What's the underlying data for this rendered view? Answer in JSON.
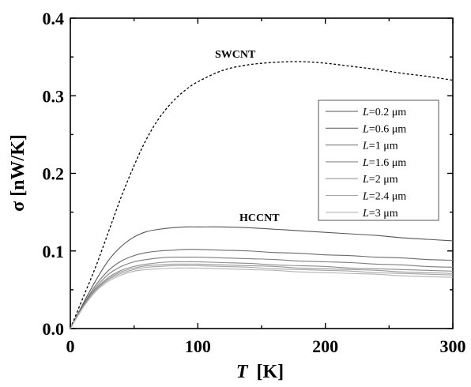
{
  "chart_data": {
    "type": "line",
    "xlabel": {
      "var": "T",
      "unit": "[K]"
    },
    "ylabel": "σ [nW/K]",
    "xlim": [
      0,
      300
    ],
    "ylim": [
      0.0,
      0.4
    ],
    "xticks": [
      "0",
      "100",
      "200",
      "300"
    ],
    "yticks": [
      "0.0",
      "0.1",
      "0.2",
      "0.3",
      "0.4"
    ],
    "grid": false,
    "legend_position": "right",
    "annotations": [
      "SWCNT",
      "HCCNT"
    ],
    "series": [
      {
        "label": "SWCNT",
        "style": "dashed",
        "color": "#000000",
        "x": [
          0,
          10,
          20,
          30,
          40,
          50,
          60,
          70,
          80,
          90,
          100,
          120,
          140,
          160,
          180,
          200,
          220,
          240,
          260,
          280,
          300
        ],
        "y": [
          0.0,
          0.04,
          0.08,
          0.125,
          0.17,
          0.21,
          0.245,
          0.272,
          0.292,
          0.307,
          0.318,
          0.333,
          0.34,
          0.343,
          0.344,
          0.342,
          0.338,
          0.334,
          0.329,
          0.325,
          0.32
        ]
      },
      {
        "name": "L=0.2 μm",
        "legend_var": "L",
        "legend_val": "=0.2 μm",
        "color": "#555555",
        "x": [
          0,
          10,
          20,
          30,
          40,
          50,
          60,
          70,
          80,
          90,
          100,
          120,
          140,
          160,
          180,
          200,
          220,
          240,
          260,
          280,
          300
        ],
        "y": [
          0.0,
          0.032,
          0.062,
          0.088,
          0.106,
          0.118,
          0.125,
          0.128,
          0.13,
          0.131,
          0.131,
          0.131,
          0.13,
          0.128,
          0.126,
          0.124,
          0.122,
          0.12,
          0.117,
          0.115,
          0.113
        ]
      },
      {
        "name": "L=0.6 μm",
        "legend_var": "L",
        "legend_val": "=0.6 μm",
        "color": "#6b6b6b",
        "x": [
          0,
          10,
          20,
          30,
          40,
          50,
          60,
          70,
          80,
          90,
          100,
          120,
          140,
          160,
          180,
          200,
          220,
          240,
          260,
          280,
          300
        ],
        "y": [
          0.0,
          0.03,
          0.056,
          0.075,
          0.087,
          0.094,
          0.098,
          0.1,
          0.101,
          0.102,
          0.102,
          0.101,
          0.1,
          0.098,
          0.097,
          0.095,
          0.094,
          0.092,
          0.091,
          0.089,
          0.088
        ]
      },
      {
        "name": "L=1 μm",
        "legend_var": "L",
        "legend_val": "=1 μm",
        "color": "#7d7d7d",
        "x": [
          0,
          10,
          20,
          30,
          40,
          50,
          60,
          70,
          80,
          90,
          100,
          120,
          140,
          160,
          180,
          200,
          220,
          240,
          260,
          280,
          300
        ],
        "y": [
          0.0,
          0.029,
          0.053,
          0.07,
          0.08,
          0.086,
          0.089,
          0.091,
          0.092,
          0.092,
          0.092,
          0.091,
          0.09,
          0.089,
          0.087,
          0.086,
          0.085,
          0.083,
          0.082,
          0.08,
          0.079
        ]
      },
      {
        "name": "L=1.6 μm",
        "legend_var": "L",
        "legend_val": "=1.6 μm",
        "color": "#8c8c8c",
        "x": [
          0,
          10,
          20,
          30,
          40,
          50,
          60,
          70,
          80,
          90,
          100,
          120,
          140,
          160,
          180,
          200,
          220,
          240,
          260,
          280,
          300
        ],
        "y": [
          0.0,
          0.028,
          0.051,
          0.066,
          0.075,
          0.08,
          0.083,
          0.085,
          0.086,
          0.086,
          0.086,
          0.085,
          0.084,
          0.082,
          0.081,
          0.08,
          0.078,
          0.077,
          0.076,
          0.075,
          0.074
        ]
      },
      {
        "name": "L=2 μm",
        "legend_var": "L",
        "legend_val": "=2 μm",
        "color": "#999999",
        "x": [
          0,
          10,
          20,
          30,
          40,
          50,
          60,
          70,
          80,
          90,
          100,
          120,
          140,
          160,
          180,
          200,
          220,
          240,
          260,
          280,
          300
        ],
        "y": [
          0.0,
          0.028,
          0.05,
          0.064,
          0.073,
          0.078,
          0.081,
          0.082,
          0.083,
          0.083,
          0.083,
          0.082,
          0.081,
          0.08,
          0.078,
          0.077,
          0.076,
          0.075,
          0.073,
          0.072,
          0.071
        ]
      },
      {
        "name": "L=2.4 μm",
        "legend_var": "L",
        "legend_val": "=2.4 μm",
        "color": "#a6a6a6",
        "x": [
          0,
          10,
          20,
          30,
          40,
          50,
          60,
          70,
          80,
          90,
          100,
          120,
          140,
          160,
          180,
          200,
          220,
          240,
          260,
          280,
          300
        ],
        "y": [
          0.0,
          0.027,
          0.049,
          0.063,
          0.071,
          0.076,
          0.079,
          0.08,
          0.081,
          0.081,
          0.081,
          0.08,
          0.079,
          0.077,
          0.076,
          0.075,
          0.074,
          0.072,
          0.071,
          0.07,
          0.069
        ]
      },
      {
        "name": "L=3 μm",
        "legend_var": "L",
        "legend_val": "=3 μm",
        "color": "#b3b3b3",
        "x": [
          0,
          10,
          20,
          30,
          40,
          50,
          60,
          70,
          80,
          90,
          100,
          120,
          140,
          160,
          180,
          200,
          220,
          240,
          260,
          280,
          300
        ],
        "y": [
          0.0,
          0.027,
          0.048,
          0.061,
          0.069,
          0.074,
          0.076,
          0.077,
          0.078,
          0.078,
          0.078,
          0.077,
          0.076,
          0.075,
          0.073,
          0.072,
          0.071,
          0.07,
          0.068,
          0.067,
          0.066
        ]
      }
    ]
  }
}
